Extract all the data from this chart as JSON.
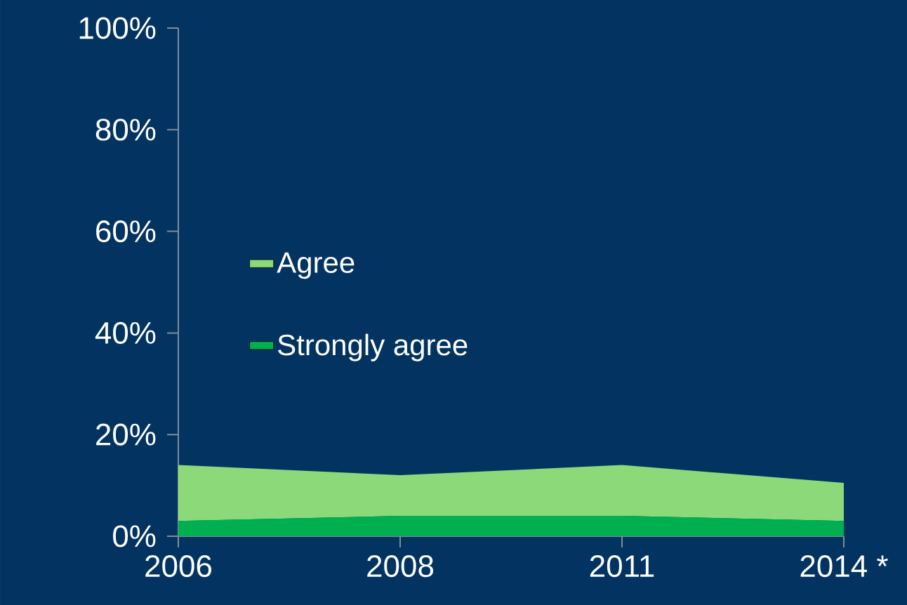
{
  "chart_data": {
    "type": "area",
    "stacked": true,
    "categories": [
      "2006",
      "2008",
      "2011",
      "2014 *"
    ],
    "series": [
      {
        "name": "Strongly agree",
        "color": "#00b050",
        "values": [
          3,
          4,
          4,
          3
        ]
      },
      {
        "name": "Agree",
        "color": "#8cd97a",
        "values": [
          11,
          8,
          10,
          7.5
        ]
      }
    ],
    "ylim": [
      0,
      100
    ],
    "yticks": [
      {
        "value": 0,
        "label": "0%"
      },
      {
        "value": 20,
        "label": "20%"
      },
      {
        "value": 40,
        "label": "40%"
      },
      {
        "value": 60,
        "label": "60%"
      },
      {
        "value": 80,
        "label": "80%"
      },
      {
        "value": 100,
        "label": "100%"
      }
    ],
    "legend": "left"
  }
}
